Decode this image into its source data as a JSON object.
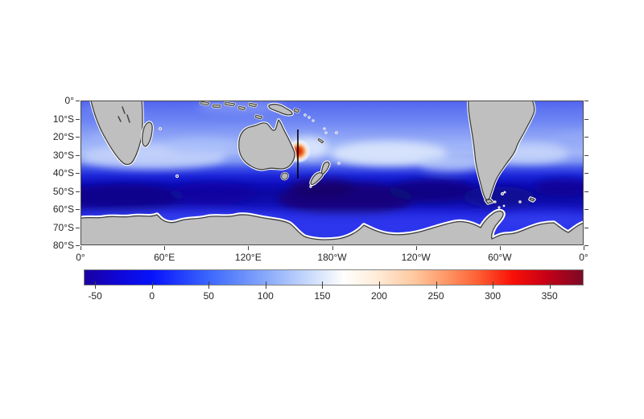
{
  "figure": {
    "background_color": "#ffffff",
    "title": ""
  },
  "chart_data": {
    "type": "heatmap",
    "description": "Geographic filled-colour map of the Southern Hemisphere oceans (0 to 80S, all longitudes) with grey land masses, a blue-white-red colour scale, a localized red hotspot east of Australia and a black meridional transect line near 155E.",
    "x_axis": {
      "ticks": [
        "0°",
        "60°E",
        "120°E",
        "180°W",
        "120°W",
        "60°W",
        "0°"
      ],
      "range_deg_east": [
        0,
        360
      ],
      "label": ""
    },
    "y_axis": {
      "ticks": [
        "0°",
        "10°S",
        "20°S",
        "30°S",
        "40°S",
        "50°S",
        "60°S",
        "70°S",
        "80°S"
      ],
      "range_deg": [
        0,
        -80
      ],
      "label": ""
    },
    "colorbar": {
      "orientation": "horizontal",
      "range": [
        -60,
        380
      ],
      "ticks": [
        -50,
        0,
        50,
        100,
        150,
        200,
        250,
        300,
        350
      ],
      "tick_labels": [
        "-50",
        "0",
        "50",
        "100",
        "150",
        "200",
        "250",
        "300",
        "350"
      ],
      "colormap_name": "blue-white-red",
      "stops": [
        {
          "pos": 0,
          "color": "#1a00a0"
        },
        {
          "pos": 7,
          "color": "#0f07d8"
        },
        {
          "pos": 13.6,
          "color": "#0713fb"
        },
        {
          "pos": 25,
          "color": "#3c67fc"
        },
        {
          "pos": 36,
          "color": "#85a7fb"
        },
        {
          "pos": 46,
          "color": "#cfdffc"
        },
        {
          "pos": 52,
          "color": "#fffefc"
        },
        {
          "pos": 58,
          "color": "#ffeedd"
        },
        {
          "pos": 66,
          "color": "#fec9a0"
        },
        {
          "pos": 73,
          "color": "#fe9463"
        },
        {
          "pos": 79,
          "color": "#fd5f33"
        },
        {
          "pos": 86,
          "color": "#f90f06"
        },
        {
          "pos": 93,
          "color": "#c40017"
        },
        {
          "pos": 100,
          "color": "#7c0a26"
        }
      ]
    },
    "field_summary": {
      "latitude_bands": [
        {
          "lat_band": "0-15S",
          "approx_value": 60,
          "appearance": "medium blue"
        },
        {
          "lat_band": "15-28S",
          "approx_value": 95,
          "appearance": "blue with lighter patches"
        },
        {
          "lat_band": "28-42S",
          "approx_value": 135,
          "appearance": "light blue / whitish subtropical band"
        },
        {
          "lat_band": "42-52S",
          "approx_value": 30,
          "appearance": "strong blue"
        },
        {
          "lat_band": "52-68S",
          "approx_value": -35,
          "appearance": "darkest navy blue"
        },
        {
          "lat_band": "68-75S coastal",
          "approx_value": 0,
          "appearance": "brighter blue along Antarctic coast"
        }
      ],
      "features": {
        "hotspot": {
          "lon": "~156°E",
          "lat": "~29°S",
          "approx_value": 350,
          "appearance": "small red/orange eddy east of Australia"
        },
        "transect_line": {
          "lon": "~155°E",
          "lat_range": "17°S to 43°S",
          "color": "#000000"
        }
      },
      "land": [
        "southern Africa",
        "Madagascar",
        "Australia",
        "Tasmania",
        "New Guinea and Indonesian islands",
        "Melanesian islands",
        "New Zealand",
        "South America",
        "Falklands",
        "South Georgia",
        "Antarctica with peninsula"
      ]
    },
    "land_color": "#bfbfbf",
    "coastline_color": "#3d3d3d",
    "ice_fringe_color": "#ffffff",
    "axis_tick_color": "#3f3f3f",
    "grid": false,
    "legend": false,
    "title": ""
  }
}
